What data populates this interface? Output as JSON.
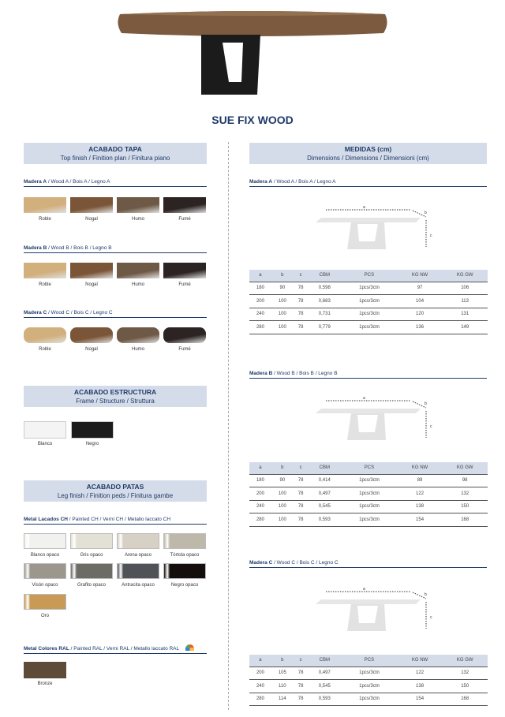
{
  "title": "SUE FIX WOOD",
  "left": {
    "top_finish": {
      "title": "ACABADO TAPA",
      "subtitle": "Top finish / Finition plan / Finitura piano"
    },
    "woods": [
      {
        "label_bold": "Madera A",
        "label_rest": " / Wood A / Bois A / Legno A",
        "shape": "rect"
      },
      {
        "label_bold": "Madera B",
        "label_rest": " / Wood B / Bois B / Legno B",
        "shape": "rect"
      },
      {
        "label_bold": "Madera C",
        "label_rest": " / Wood C / Bois C / Legno C",
        "shape": "rounded"
      }
    ],
    "wood_swatches": [
      {
        "name": "Roble",
        "color": "#d2b07e"
      },
      {
        "name": "Nogal",
        "color": "#7a5538"
      },
      {
        "name": "Humo",
        "color": "#6e5846"
      },
      {
        "name": "Fumé",
        "color": "#2b2422"
      }
    ],
    "frame": {
      "title": "ACABADO ESTRUCTURA",
      "subtitle": "Frame / Structure / Struttura",
      "swatches": [
        {
          "name": "Blanco",
          "color": "#f4f4f4"
        },
        {
          "name": "Negro",
          "color": "#1c1c1c"
        }
      ]
    },
    "legs": {
      "title": "ACABADO PATAS",
      "subtitle": "Leg finish / Finition peds / Finitura gambe",
      "lacados": {
        "label_bold": "Metal Lacados CH",
        "label_rest": " / Painted CH / Verni CH / Metallo laccato CH",
        "swatches": [
          {
            "name": "Blanco opaco",
            "color": "#f1f1ef"
          },
          {
            "name": "Gris opaco",
            "color": "#e3e1d6"
          },
          {
            "name": "Arena opaco",
            "color": "#d6d1c4"
          },
          {
            "name": "Tórtola opaco",
            "color": "#bdb8a9"
          },
          {
            "name": "Visón opaco",
            "color": "#9c978c"
          },
          {
            "name": "Grafito opaco",
            "color": "#6d6b66"
          },
          {
            "name": "Antracita opaco",
            "color": "#4f5257"
          },
          {
            "name": "Negro opaco",
            "color": "#140f0c"
          },
          {
            "name": "Oro",
            "color": "#c99a55"
          }
        ]
      },
      "ral": {
        "label_bold": "Metal Colores RAL",
        "label_rest": " / Painted RAL / Verni RAL / Metallo laccato  RAL",
        "swatches": [
          {
            "name": "Bronze",
            "color": "#5e4a38"
          }
        ]
      }
    }
  },
  "right": {
    "title": "MEDIDAS (cm)",
    "subtitle": "Dimensions / Dimensions / Dimensioni (cm)",
    "columns": [
      "a",
      "b",
      "c",
      "CBM",
      "PCS",
      "KG NW",
      "KG GW"
    ],
    "dim_labels": {
      "a": "a",
      "b": "b",
      "c": "c"
    },
    "sections": [
      {
        "label_bold": "Madera A",
        "label_rest": " / Wood A / Bois A / Legno A",
        "rows": [
          [
            "180",
            "90",
            "78",
            "0,598",
            "1pcs/3ctn",
            "97",
            "106"
          ],
          [
            "200",
            "100",
            "78",
            "0,683",
            "1pcs/3ctn",
            "104",
            "113"
          ],
          [
            "240",
            "100",
            "78",
            "0,731",
            "1pcs/3ctn",
            "120",
            "131"
          ],
          [
            "280",
            "100",
            "78",
            "0,779",
            "1pcs/3ctn",
            "136",
            "149"
          ]
        ]
      },
      {
        "label_bold": "Madera B",
        "label_rest": " / Wood B / Bois B / Legno B",
        "rows": [
          [
            "180",
            "90",
            "78",
            "0,414",
            "1pcs/3ctn",
            "89",
            "98"
          ],
          [
            "200",
            "100",
            "78",
            "0,497",
            "1pcs/3ctn",
            "122",
            "132"
          ],
          [
            "240",
            "100",
            "78",
            "0,545",
            "1pcs/3ctn",
            "138",
            "150"
          ],
          [
            "280",
            "100",
            "78",
            "0,593",
            "1pcs/3ctn",
            "154",
            "168"
          ]
        ]
      },
      {
        "label_bold": "Madera C",
        "label_rest": " / Wood C / Bois C / Legno C",
        "rows": [
          [
            "200",
            "105",
            "78",
            "0,497",
            "1pcs/3ctn",
            "122",
            "132"
          ],
          [
            "240",
            "110",
            "78",
            "0,545",
            "1pcs/3ctn",
            "138",
            "150"
          ],
          [
            "280",
            "114",
            "78",
            "0,593",
            "1pcs/3ctn",
            "154",
            "168"
          ]
        ]
      }
    ]
  }
}
